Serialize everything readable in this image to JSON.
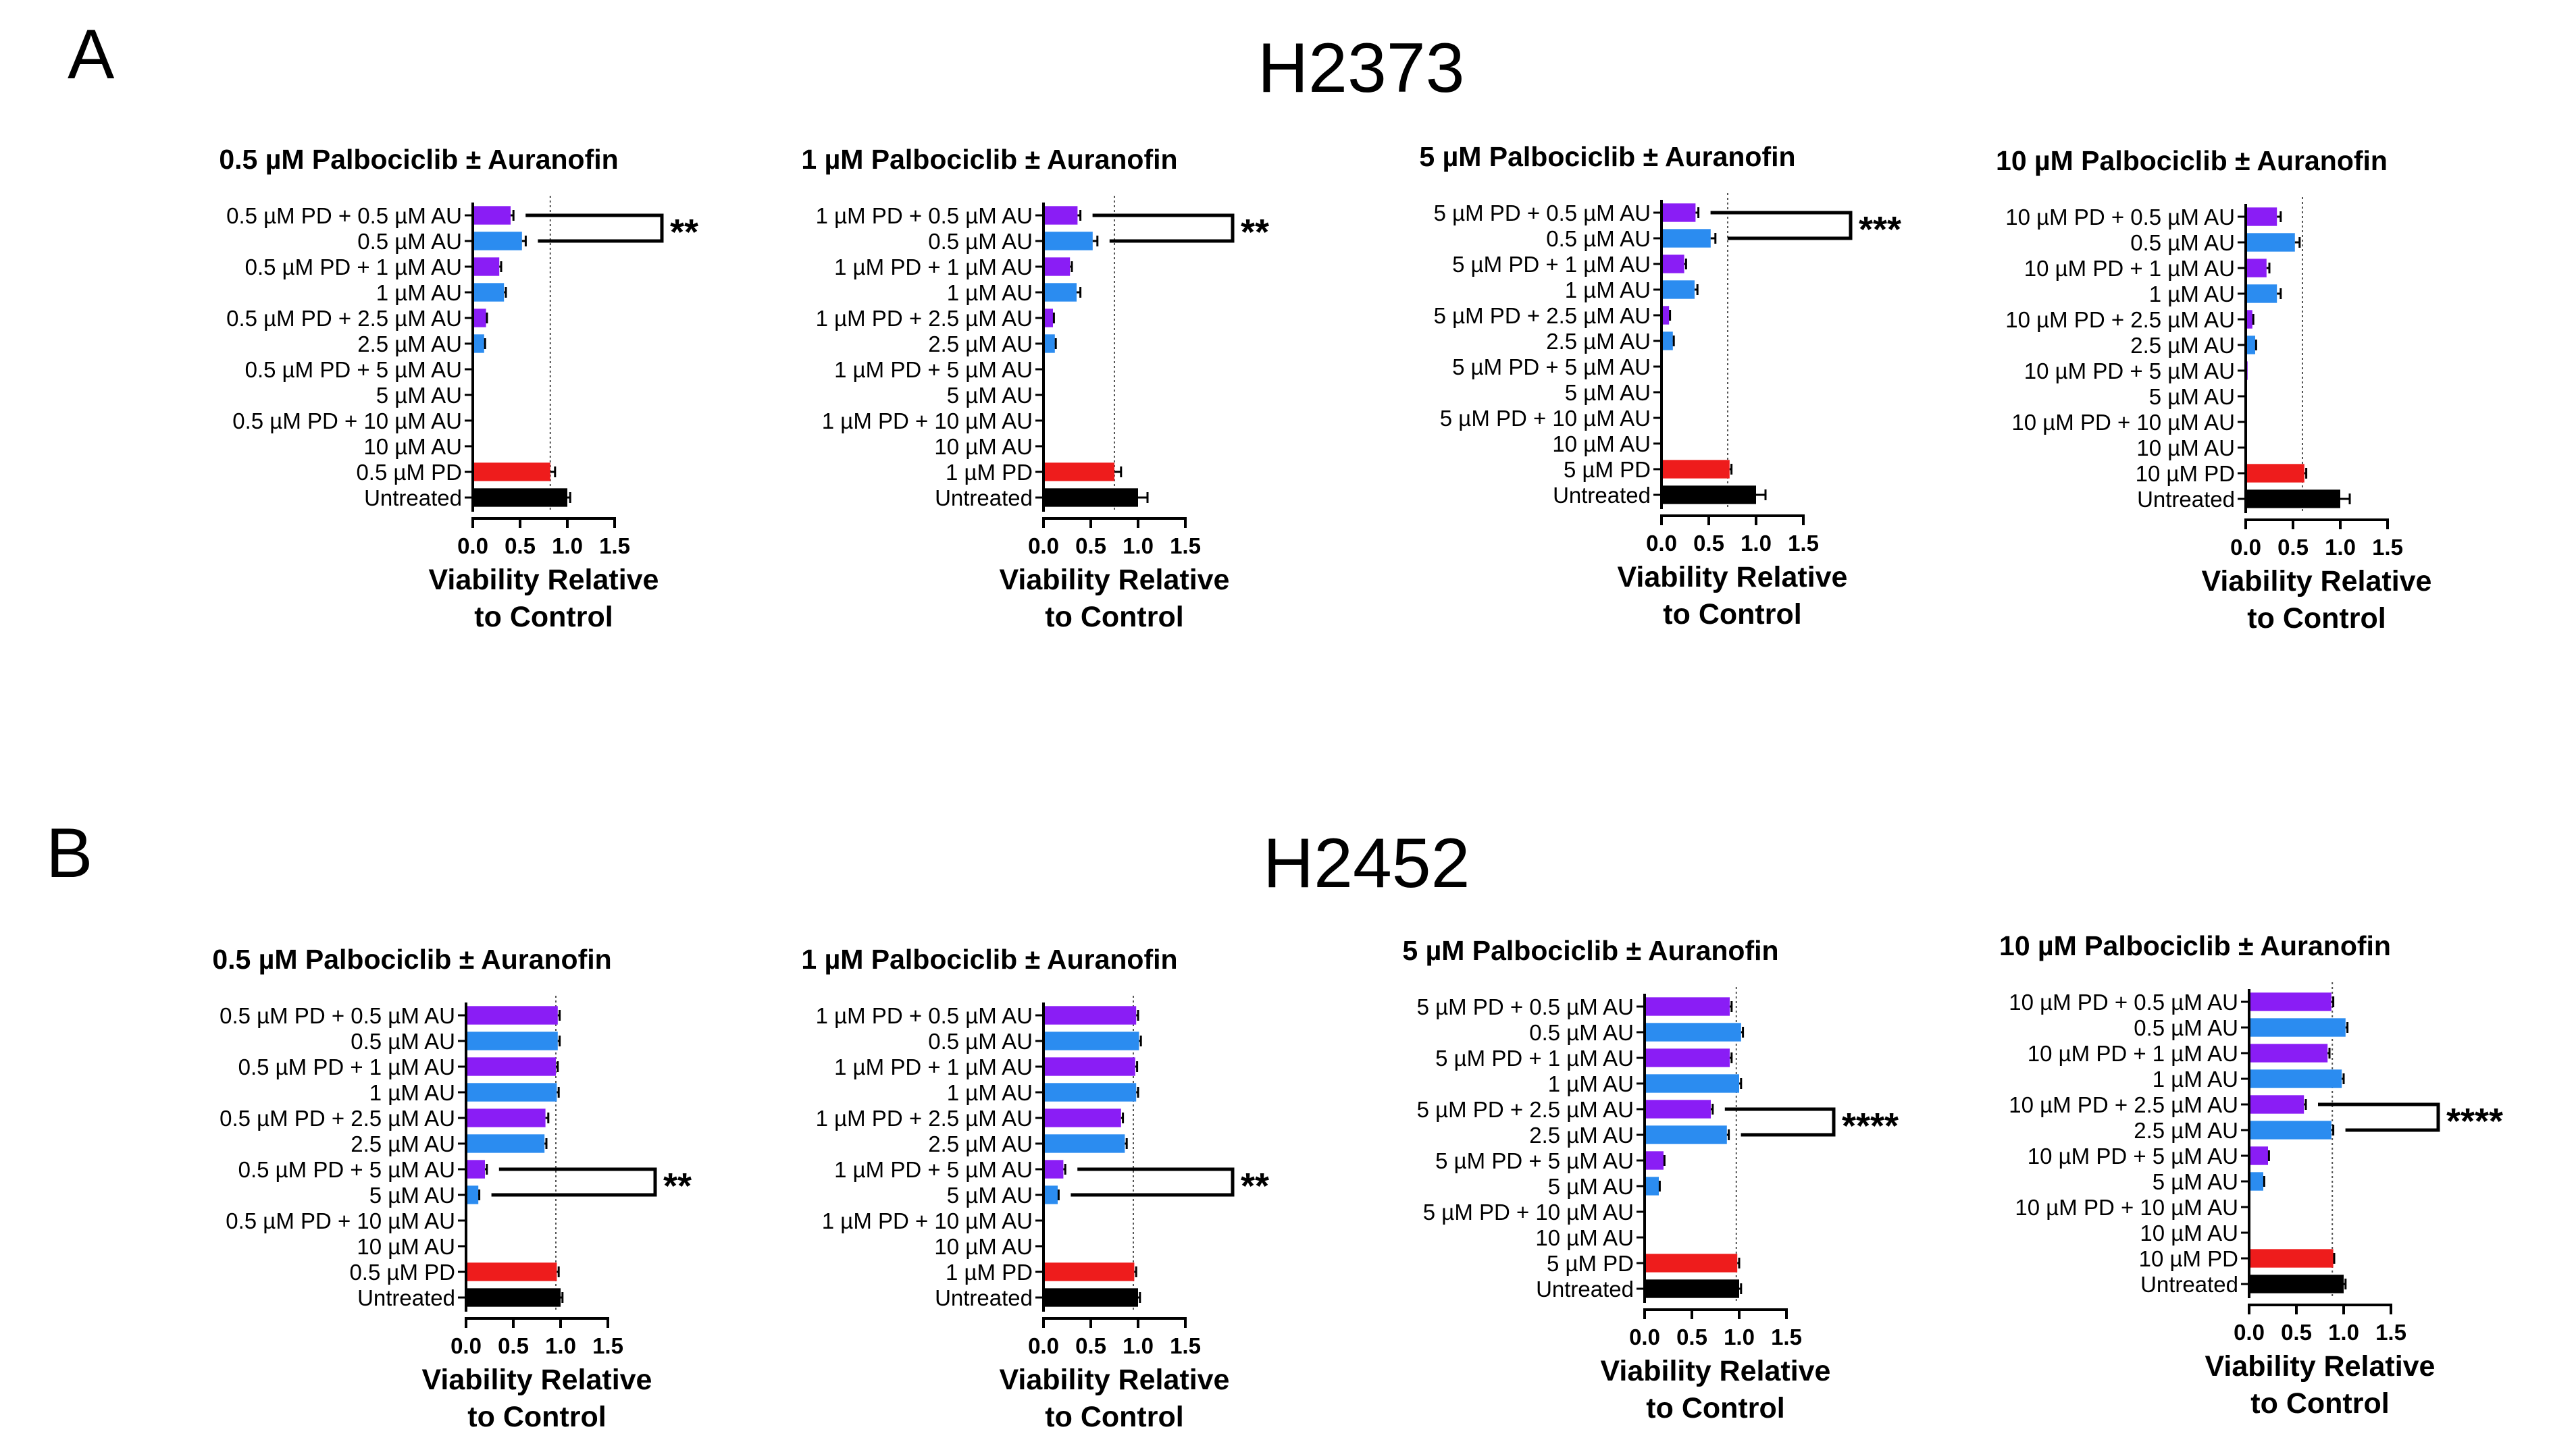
{
  "figure": {
    "panels": [
      {
        "letter": "A",
        "cell_line": "H2373"
      },
      {
        "letter": "B",
        "cell_line": "H2452"
      }
    ]
  },
  "colors": {
    "combo": "#8a1df5",
    "auranofin": "#2b8cf0",
    "palbociclib": "#ee1c1c",
    "untreated": "#000000"
  },
  "chart_data": [
    {
      "type": "bar",
      "orientation": "horizontal",
      "panel": "A",
      "cell_line": "H2373",
      "title": "0.5 µM Palbociclib ± Auranofin",
      "xlabel": "Viability Relative to Control",
      "xlim": [
        0,
        1.5
      ],
      "xticks": [
        "0.0",
        "0.5",
        "1.0",
        "1.5"
      ],
      "reference_line": 0.82,
      "categories": [
        "0.5 µM PD + 0.5 µM AU",
        "0.5 µM AU",
        "0.5 µM PD + 1 µM AU",
        "1 µM AU",
        "0.5 µM PD + 2.5 µM AU",
        "2.5 µM AU",
        "0.5 µM PD + 5 µM AU",
        "5 µM AU",
        "0.5 µM PD + 10 µM AU",
        "10 µM AU",
        "0.5 µM PD",
        "Untreated"
      ],
      "values": [
        0.4,
        0.52,
        0.28,
        0.33,
        0.14,
        0.12,
        0.01,
        0.005,
        0.005,
        0.005,
        0.82,
        1.0
      ],
      "errors": [
        0.03,
        0.04,
        0.02,
        0.02,
        0.01,
        0.01,
        0,
        0,
        0,
        0,
        0.05,
        0.03
      ],
      "groups": [
        "combo",
        "auranofin",
        "combo",
        "auranofin",
        "combo",
        "auranofin",
        "combo",
        "auranofin",
        "combo",
        "auranofin",
        "palbociclib",
        "untreated"
      ],
      "significance": {
        "between": [
          0,
          1
        ],
        "label": "**"
      }
    },
    {
      "type": "bar",
      "orientation": "horizontal",
      "panel": "A",
      "cell_line": "H2373",
      "title": "1 µM Palbociclib ± Auranofin",
      "xlabel": "Viability Relative to Control",
      "xlim": [
        0,
        1.5
      ],
      "xticks": [
        "0.0",
        "0.5",
        "1.0",
        "1.5"
      ],
      "reference_line": 0.75,
      "categories": [
        "1 µM PD + 0.5 µM AU",
        "0.5 µM AU",
        "1 µM PD + 1 µM AU",
        "1 µM AU",
        "1 µM PD + 2.5 µM AU",
        "2.5 µM AU",
        "1 µM PD + 5 µM AU",
        "5 µM AU",
        "1 µM PD + 10 µM AU",
        "10 µM AU",
        "1 µM PD",
        "Untreated"
      ],
      "values": [
        0.36,
        0.52,
        0.28,
        0.35,
        0.1,
        0.12,
        0.01,
        0.005,
        0.005,
        0.005,
        0.75,
        1.0
      ],
      "errors": [
        0.03,
        0.05,
        0.02,
        0.04,
        0.01,
        0.01,
        0,
        0,
        0,
        0,
        0.07,
        0.1
      ],
      "groups": [
        "combo",
        "auranofin",
        "combo",
        "auranofin",
        "combo",
        "auranofin",
        "combo",
        "auranofin",
        "combo",
        "auranofin",
        "palbociclib",
        "untreated"
      ],
      "significance": {
        "between": [
          0,
          1
        ],
        "label": "**"
      }
    },
    {
      "type": "bar",
      "orientation": "horizontal",
      "panel": "A",
      "cell_line": "H2373",
      "title": "5 µM Palbociclib ± Auranofin",
      "xlabel": "Viability Relative to Control",
      "xlim": [
        0,
        1.5
      ],
      "xticks": [
        "0.0",
        "0.5",
        "1.0",
        "1.5"
      ],
      "reference_line": 0.7,
      "categories": [
        "5 µM PD + 0.5 µM AU",
        "0.5 µM AU",
        "5 µM PD + 1 µM AU",
        "1 µM AU",
        "5 µM PD + 2.5 µM AU",
        "2.5 µM AU",
        "5 µM PD + 5 µM AU",
        "5 µM AU",
        "5 µM PD + 10 µM AU",
        "10 µM AU",
        "5 µM PD",
        "Untreated"
      ],
      "values": [
        0.36,
        0.52,
        0.24,
        0.35,
        0.08,
        0.12,
        0.01,
        0.005,
        0.005,
        0.005,
        0.72,
        1.0
      ],
      "errors": [
        0.03,
        0.05,
        0.02,
        0.03,
        0.01,
        0.01,
        0,
        0,
        0,
        0,
        0.02,
        0.1
      ],
      "groups": [
        "combo",
        "auranofin",
        "combo",
        "auranofin",
        "combo",
        "auranofin",
        "combo",
        "auranofin",
        "combo",
        "auranofin",
        "palbociclib",
        "untreated"
      ],
      "significance": {
        "between": [
          0,
          1
        ],
        "label": "***"
      }
    },
    {
      "type": "bar",
      "orientation": "horizontal",
      "panel": "A",
      "cell_line": "H2373",
      "title": "10 µM Palbociclib ± Auranofin",
      "xlabel": "Viability Relative to Control",
      "xlim": [
        0,
        1.5
      ],
      "xticks": [
        "0.0",
        "0.5",
        "1.0",
        "1.5"
      ],
      "reference_line": 0.6,
      "categories": [
        "10 µM PD + 0.5 µM AU",
        "0.5 µM AU",
        "10 µM PD + 1 µM AU",
        "1 µM AU",
        "10 µM PD + 2.5 µM AU",
        "2.5 µM AU",
        "10 µM PD + 5 µM AU",
        "5 µM AU",
        "10 µM PD + 10 µM AU",
        "10 µM AU",
        "10 µM PD",
        "Untreated"
      ],
      "values": [
        0.33,
        0.52,
        0.22,
        0.33,
        0.07,
        0.1,
        0.02,
        0.005,
        0.005,
        0.005,
        0.62,
        1.0
      ],
      "errors": [
        0.04,
        0.05,
        0.03,
        0.04,
        0.01,
        0.01,
        0,
        0,
        0,
        0,
        0.02,
        0.1
      ],
      "groups": [
        "combo",
        "auranofin",
        "combo",
        "auranofin",
        "combo",
        "auranofin",
        "combo",
        "auranofin",
        "combo",
        "auranofin",
        "palbociclib",
        "untreated"
      ],
      "significance": null
    },
    {
      "type": "bar",
      "orientation": "horizontal",
      "panel": "B",
      "cell_line": "H2452",
      "title": "0.5 µM Palbociclib ± Auranofin",
      "xlabel": "Viability Relative to Control",
      "xlim": [
        0,
        1.5
      ],
      "xticks": [
        "0.0",
        "0.5",
        "1.0",
        "1.5"
      ],
      "reference_line": 0.95,
      "categories": [
        "0.5 µM PD + 0.5 µM AU",
        "0.5 µM AU",
        "0.5 µM PD + 1 µM AU",
        "1 µM AU",
        "0.5 µM PD + 2.5 µM AU",
        "2.5 µM AU",
        "0.5 µM PD + 5 µM AU",
        "5 µM AU",
        "0.5 µM PD + 10 µM AU",
        "10 µM AU",
        "0.5 µM PD",
        "Untreated"
      ],
      "values": [
        0.97,
        0.97,
        0.95,
        0.96,
        0.84,
        0.83,
        0.2,
        0.13,
        0.005,
        0.005,
        0.96,
        1.0
      ],
      "errors": [
        0.02,
        0.02,
        0.02,
        0.02,
        0.03,
        0.02,
        0.02,
        0.01,
        0,
        0,
        0.02,
        0.02
      ],
      "groups": [
        "combo",
        "auranofin",
        "combo",
        "auranofin",
        "combo",
        "auranofin",
        "combo",
        "auranofin",
        "combo",
        "auranofin",
        "palbociclib",
        "untreated"
      ],
      "significance": {
        "between": [
          6,
          7
        ],
        "label": "**"
      }
    },
    {
      "type": "bar",
      "orientation": "horizontal",
      "panel": "B",
      "cell_line": "H2452",
      "title": "1 µM Palbociclib ± Auranofin",
      "xlabel": "Viability Relative to Control",
      "xlim": [
        0,
        1.5
      ],
      "xticks": [
        "0.0",
        "0.5",
        "1.0",
        "1.5"
      ],
      "reference_line": 0.95,
      "categories": [
        "1 µM PD + 0.5 µM AU",
        "0.5 µM AU",
        "1 µM PD + 1 µM AU",
        "1 µM AU",
        "1 µM PD + 2.5 µM AU",
        "2.5 µM AU",
        "1 µM PD + 5 µM AU",
        "5 µM AU",
        "1 µM PD + 10 µM AU",
        "10 µM AU",
        "1 µM PD",
        "Untreated"
      ],
      "values": [
        0.98,
        1.01,
        0.97,
        0.98,
        0.82,
        0.86,
        0.21,
        0.15,
        0.005,
        0.005,
        0.96,
        1.0
      ],
      "errors": [
        0.02,
        0.02,
        0.02,
        0.02,
        0.02,
        0.02,
        0.02,
        0.01,
        0,
        0,
        0.02,
        0.02
      ],
      "groups": [
        "combo",
        "auranofin",
        "combo",
        "auranofin",
        "combo",
        "auranofin",
        "combo",
        "auranofin",
        "combo",
        "auranofin",
        "palbociclib",
        "untreated"
      ],
      "significance": {
        "between": [
          6,
          7
        ],
        "label": "**"
      }
    },
    {
      "type": "bar",
      "orientation": "horizontal",
      "panel": "B",
      "cell_line": "H2452",
      "title": "5 µM Palbociclib ± Auranofin",
      "xlabel": "Viability Relative to Control",
      "xlim": [
        0,
        1.5
      ],
      "xticks": [
        "0.0",
        "0.5",
        "1.0",
        "1.5"
      ],
      "reference_line": 0.97,
      "categories": [
        "5 µM PD + 0.5 µM AU",
        "0.5 µM AU",
        "5 µM PD + 1 µM AU",
        "1 µM AU",
        "5 µM PD + 2.5 µM AU",
        "2.5 µM AU",
        "5 µM PD + 5 µM AU",
        "5 µM AU",
        "5 µM PD + 10 µM AU",
        "10 µM AU",
        "5 µM PD",
        "Untreated"
      ],
      "values": [
        0.9,
        1.02,
        0.9,
        1.0,
        0.7,
        0.87,
        0.2,
        0.15,
        0.005,
        0.005,
        0.98,
        1.0
      ],
      "errors": [
        0.02,
        0.02,
        0.02,
        0.02,
        0.02,
        0.02,
        0.01,
        0.01,
        0,
        0,
        0.02,
        0.02
      ],
      "groups": [
        "combo",
        "auranofin",
        "combo",
        "auranofin",
        "combo",
        "auranofin",
        "combo",
        "auranofin",
        "combo",
        "auranofin",
        "palbociclib",
        "untreated"
      ],
      "significance": {
        "between": [
          4,
          5
        ],
        "label": "****"
      }
    },
    {
      "type": "bar",
      "orientation": "horizontal",
      "panel": "B",
      "cell_line": "H2452",
      "title": "10 µM Palbociclib ± Auranofin",
      "xlabel": "Viability Relative to Control",
      "xlim": [
        0,
        1.5
      ],
      "xticks": [
        "0.0",
        "0.5",
        "1.0",
        "1.5"
      ],
      "reference_line": 0.88,
      "categories": [
        "10 µM PD + 0.5 µM AU",
        "0.5 µM AU",
        "10 µM PD + 1 µM AU",
        "1 µM AU",
        "10 µM PD + 2.5 µM AU",
        "2.5 µM AU",
        "10 µM PD + 5 µM AU",
        "5 µM AU",
        "10 µM PD + 10 µM AU",
        "10 µM AU",
        "10 µM PD",
        "Untreated"
      ],
      "values": [
        0.87,
        1.02,
        0.83,
        0.98,
        0.58,
        0.87,
        0.2,
        0.15,
        0.005,
        0.005,
        0.89,
        1.0
      ],
      "errors": [
        0.02,
        0.02,
        0.02,
        0.02,
        0.02,
        0.02,
        0.01,
        0.01,
        0,
        0,
        0.01,
        0.02
      ],
      "groups": [
        "combo",
        "auranofin",
        "combo",
        "auranofin",
        "combo",
        "auranofin",
        "combo",
        "auranofin",
        "combo",
        "auranofin",
        "palbociclib",
        "untreated"
      ],
      "significance": {
        "between": [
          4,
          5
        ],
        "label": "****"
      }
    }
  ]
}
